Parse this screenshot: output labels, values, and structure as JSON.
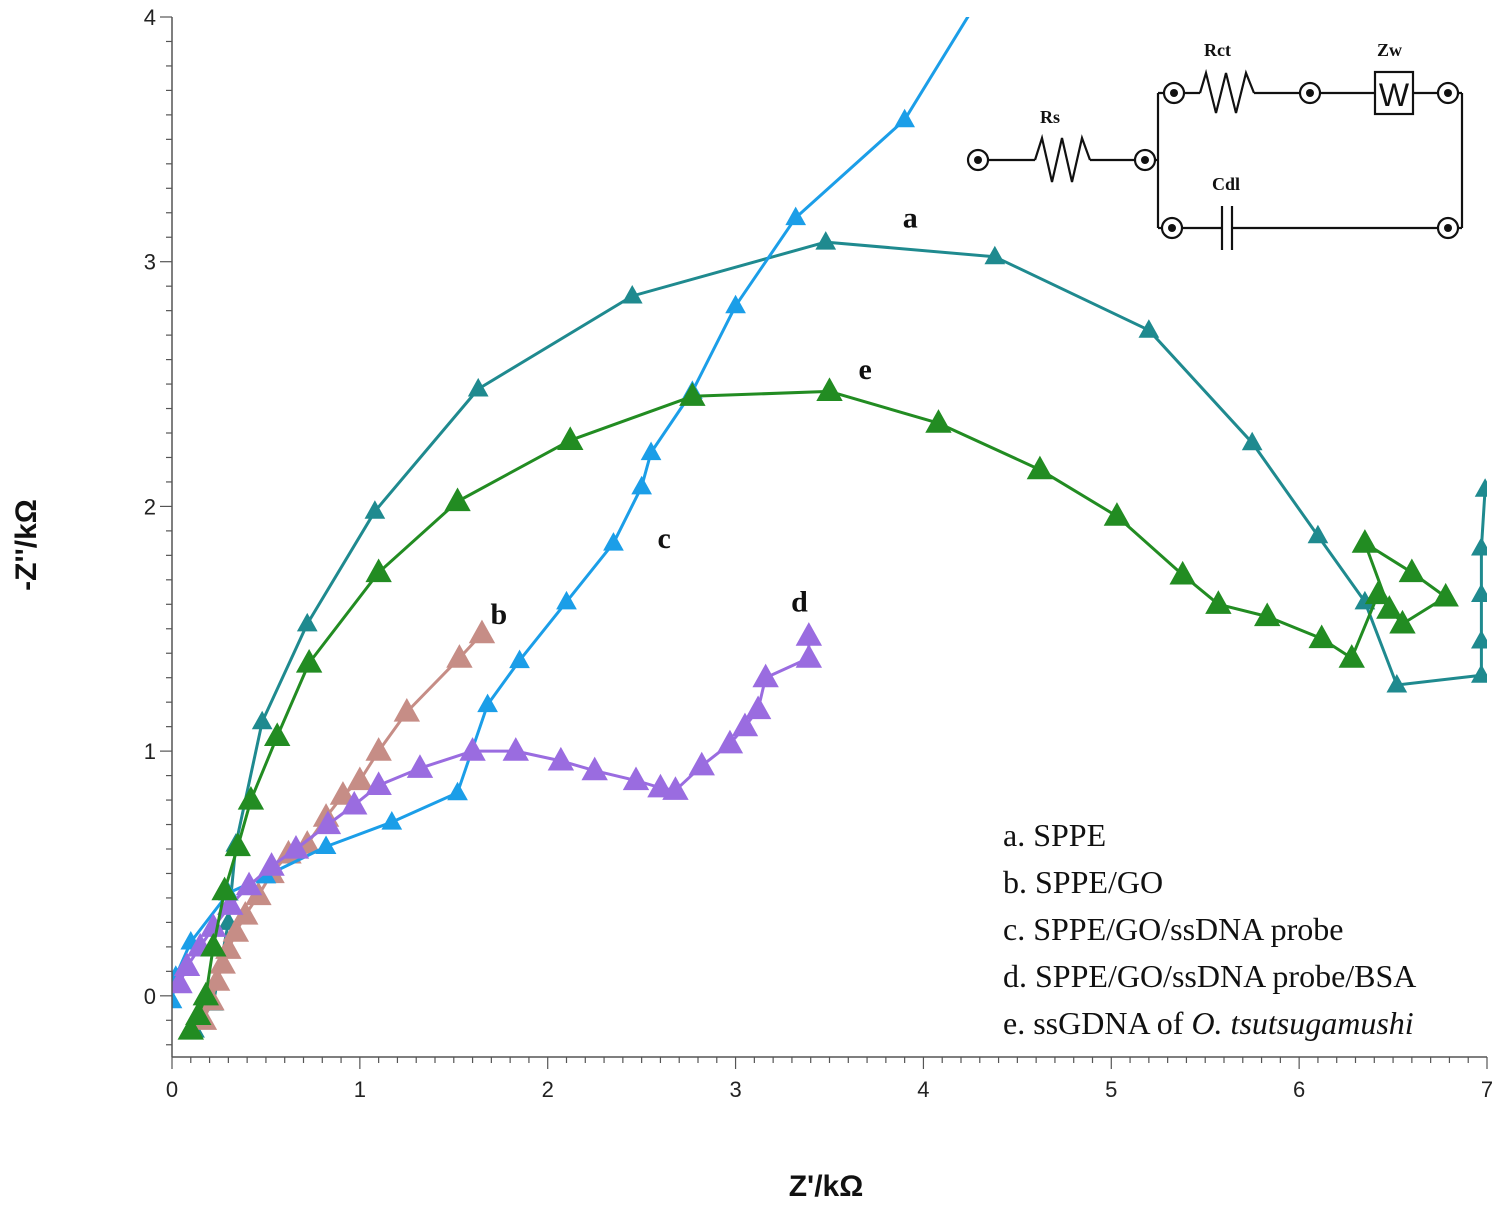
{
  "chart_data": {
    "type": "scatter",
    "xlabel": "Z'/kΩ",
    "ylabel": "-Z''/kΩ",
    "xlim": [
      0,
      7
    ],
    "ylim": [
      -0.25,
      4
    ],
    "xticks": [
      "0",
      "1",
      "2",
      "3",
      "4",
      "5",
      "6",
      "7"
    ],
    "yticks": [
      "0",
      "1",
      "2",
      "3",
      "4"
    ],
    "grid": false,
    "legend_position": "bottom-right",
    "legend": [
      {
        "prefix": "a. ",
        "text": "SPPE",
        "italic": ""
      },
      {
        "prefix": "b. ",
        "text": "SPPE/GO",
        "italic": ""
      },
      {
        "prefix": "c. ",
        "text": "SPPE/GO/ssDNA probe",
        "italic": ""
      },
      {
        "prefix": "d. ",
        "text": "SPPE/GO/ssDNA probe/BSA",
        "italic": ""
      },
      {
        "prefix": "e. ",
        "text": "ssGDNA of ",
        "italic": "O. tsutsugamushi"
      }
    ],
    "series": [
      {
        "label": "a",
        "color": "#1f8a8f",
        "marker_size": "small",
        "label_pos": [
          3.93,
          3.14
        ],
        "points": [
          [
            0.12,
            -0.14
          ],
          [
            0.15,
            -0.1
          ],
          [
            0.22,
            -0.03
          ],
          [
            0.3,
            0.3
          ],
          [
            0.34,
            0.62
          ],
          [
            0.48,
            1.12
          ],
          [
            0.72,
            1.52
          ],
          [
            1.08,
            1.98
          ],
          [
            1.63,
            2.48
          ],
          [
            2.45,
            2.86
          ],
          [
            3.48,
            3.08
          ],
          [
            4.38,
            3.02
          ],
          [
            5.2,
            2.72
          ],
          [
            5.75,
            2.26
          ],
          [
            6.1,
            1.88
          ],
          [
            6.35,
            1.61
          ],
          [
            6.52,
            1.27
          ],
          [
            6.97,
            1.31
          ],
          [
            6.97,
            1.45
          ],
          [
            6.97,
            1.64
          ],
          [
            6.97,
            1.83
          ],
          [
            6.99,
            2.07
          ]
        ]
      },
      {
        "label": "b",
        "color": "#c68d86",
        "marker_size": "large",
        "label_pos": [
          1.74,
          1.52
        ],
        "points": [
          [
            0.17,
            -0.1
          ],
          [
            0.21,
            -0.02
          ],
          [
            0.24,
            0.06
          ],
          [
            0.27,
            0.13
          ],
          [
            0.3,
            0.19
          ],
          [
            0.34,
            0.26
          ],
          [
            0.39,
            0.33
          ],
          [
            0.46,
            0.41
          ],
          [
            0.53,
            0.5
          ],
          [
            0.62,
            0.58
          ],
          [
            0.72,
            0.62
          ],
          [
            0.82,
            0.73
          ],
          [
            0.91,
            0.82
          ],
          [
            1.0,
            0.88
          ],
          [
            1.1,
            1.0
          ],
          [
            1.25,
            1.16
          ],
          [
            1.53,
            1.38
          ],
          [
            1.65,
            1.48
          ]
        ]
      },
      {
        "label": "c",
        "color": "#1b9ee8",
        "marker_size": "small",
        "label_pos": [
          2.62,
          1.83
        ],
        "points": [
          [
            0.0,
            -0.02
          ],
          [
            0.02,
            0.08
          ],
          [
            0.1,
            0.22
          ],
          [
            0.3,
            0.42
          ],
          [
            0.5,
            0.49
          ],
          [
            0.82,
            0.61
          ],
          [
            1.17,
            0.71
          ],
          [
            1.52,
            0.83
          ],
          [
            1.68,
            1.19
          ],
          [
            1.85,
            1.37
          ],
          [
            2.1,
            1.61
          ],
          [
            2.35,
            1.85
          ],
          [
            2.5,
            2.08
          ],
          [
            2.55,
            2.22
          ],
          [
            2.77,
            2.47
          ],
          [
            3.0,
            2.82
          ],
          [
            3.32,
            3.18
          ],
          [
            3.9,
            3.58
          ],
          [
            4.3,
            4.08
          ]
        ]
      },
      {
        "label": "d",
        "color": "#9a6ce0",
        "marker_size": "large",
        "label_pos": [
          3.34,
          1.57
        ],
        "points": [
          [
            0.04,
            0.05
          ],
          [
            0.08,
            0.12
          ],
          [
            0.15,
            0.2
          ],
          [
            0.22,
            0.28
          ],
          [
            0.31,
            0.37
          ],
          [
            0.41,
            0.45
          ],
          [
            0.53,
            0.53
          ],
          [
            0.66,
            0.6
          ],
          [
            0.83,
            0.7
          ],
          [
            0.97,
            0.78
          ],
          [
            1.1,
            0.86
          ],
          [
            1.32,
            0.93
          ],
          [
            1.6,
            1.0
          ],
          [
            1.83,
            1.0
          ],
          [
            2.07,
            0.96
          ],
          [
            2.25,
            0.92
          ],
          [
            2.47,
            0.88
          ],
          [
            2.6,
            0.85
          ],
          [
            2.68,
            0.84
          ],
          [
            2.82,
            0.94
          ],
          [
            2.97,
            1.03
          ],
          [
            3.05,
            1.1
          ],
          [
            3.12,
            1.17
          ],
          [
            3.16,
            1.3
          ],
          [
            3.39,
            1.38
          ],
          [
            3.39,
            1.47
          ]
        ]
      },
      {
        "label": "e",
        "color": "#228c22",
        "marker_size": "large",
        "label_pos": [
          3.69,
          2.52
        ],
        "points": [
          [
            0.1,
            -0.14
          ],
          [
            0.14,
            -0.08
          ],
          [
            0.18,
            0.0
          ],
          [
            0.22,
            0.2
          ],
          [
            0.28,
            0.43
          ],
          [
            0.35,
            0.61
          ],
          [
            0.42,
            0.8
          ],
          [
            0.56,
            1.06
          ],
          [
            0.73,
            1.36
          ],
          [
            1.1,
            1.73
          ],
          [
            1.52,
            2.02
          ],
          [
            2.12,
            2.27
          ],
          [
            2.77,
            2.45
          ],
          [
            3.5,
            2.47
          ],
          [
            4.08,
            2.34
          ],
          [
            4.62,
            2.15
          ],
          [
            5.03,
            1.96
          ],
          [
            5.38,
            1.72
          ],
          [
            5.57,
            1.6
          ],
          [
            5.83,
            1.55
          ],
          [
            6.12,
            1.46
          ],
          [
            6.28,
            1.38
          ],
          [
            6.42,
            1.64
          ],
          [
            6.55,
            1.52
          ],
          [
            6.78,
            1.63
          ],
          [
            6.6,
            1.73
          ],
          [
            6.35,
            1.85
          ],
          [
            6.48,
            1.58
          ]
        ]
      }
    ]
  },
  "circuit": {
    "rs_label": "Rs",
    "rct_label": "Rct",
    "zw_label": "Zw",
    "cdl_label": "Cdl",
    "warburg_symbol": "W"
  }
}
